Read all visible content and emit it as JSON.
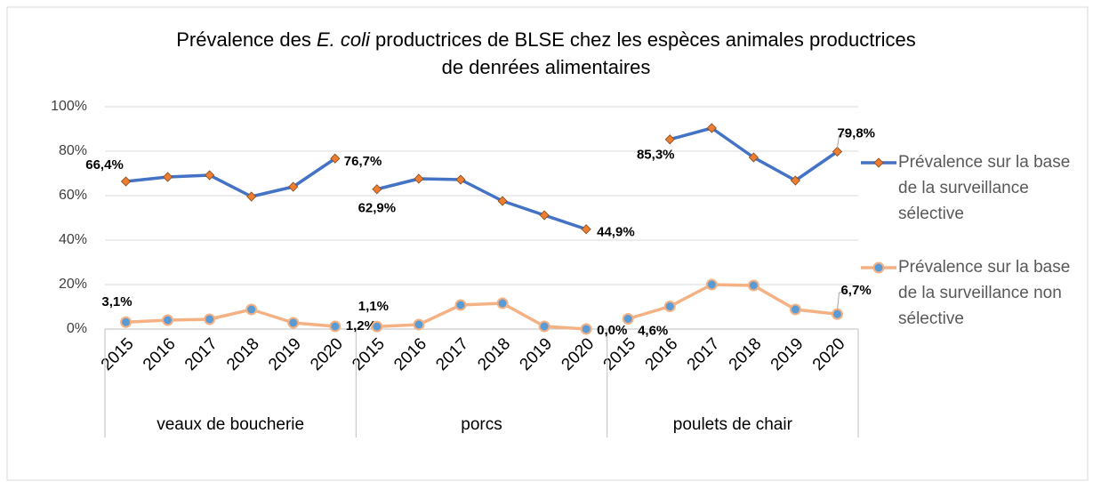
{
  "chart_data": {
    "type": "line",
    "title_lines": [
      [
        "Prévalence des ",
        "E. coli",
        " productrices de BLSE chez les espèces animales productrices"
      ],
      [
        "de denrées alimentaires"
      ]
    ],
    "groups": [
      "veaux de boucherie",
      "porcs",
      "poulets de chair"
    ],
    "categories": [
      [
        "2015",
        "2016",
        "2017",
        "2018",
        "2019",
        "2020"
      ],
      [
        "2015",
        "2016",
        "2017",
        "2018",
        "2019",
        "2020"
      ],
      [
        "2015",
        "2016",
        "2017",
        "2018",
        "2019",
        "2020"
      ]
    ],
    "series": [
      {
        "name": "Prévalence sur la base de la surveillance sélective",
        "color": "#4472c4",
        "marker": "diamond",
        "marker_color": "#ed7d31",
        "values": [
          [
            66.4,
            68.4,
            69.2,
            59.6,
            64,
            76.7
          ],
          [
            62.9,
            67.6,
            67.2,
            57.6,
            51.2,
            44.9
          ],
          [
            null,
            85.3,
            90.4,
            77.2,
            66.8,
            79.8
          ]
        ],
        "value_labels": [
          [
            "66,4%",
            null,
            null,
            null,
            null,
            "76,7%"
          ],
          [
            "62,9%",
            null,
            null,
            null,
            null,
            "44,9%"
          ],
          [
            null,
            "85,3%",
            null,
            null,
            null,
            "79,8%"
          ]
        ]
      },
      {
        "name": "Prévalence sur la base de la surveillance non sélective",
        "color": "#f4b183",
        "marker": "circle",
        "marker_color": "#5b9bd5",
        "values": [
          [
            3.1,
            4,
            4.4,
            8.8,
            2.8,
            1.2
          ],
          [
            1.1,
            2,
            10.8,
            11.6,
            1.2,
            0
          ],
          [
            4.6,
            10.2,
            20,
            19.6,
            8.8,
            6.7
          ]
        ],
        "value_labels": [
          [
            "3,1%",
            null,
            null,
            null,
            null,
            "1,2%"
          ],
          [
            "1,1%",
            null,
            null,
            null,
            null,
            "0,0%"
          ],
          [
            "4,6%",
            null,
            null,
            null,
            null,
            "6,7%"
          ]
        ]
      }
    ],
    "ylim": [
      0,
      100
    ],
    "yticks": [
      {
        "value": 0,
        "label": "0%"
      },
      {
        "value": 20,
        "label": "20%"
      },
      {
        "value": 40,
        "label": "40%"
      },
      {
        "value": 60,
        "label": "60%"
      },
      {
        "value": 80,
        "label": "80%"
      },
      {
        "value": 100,
        "label": "100%"
      }
    ],
    "grid": true,
    "legend": "right"
  }
}
